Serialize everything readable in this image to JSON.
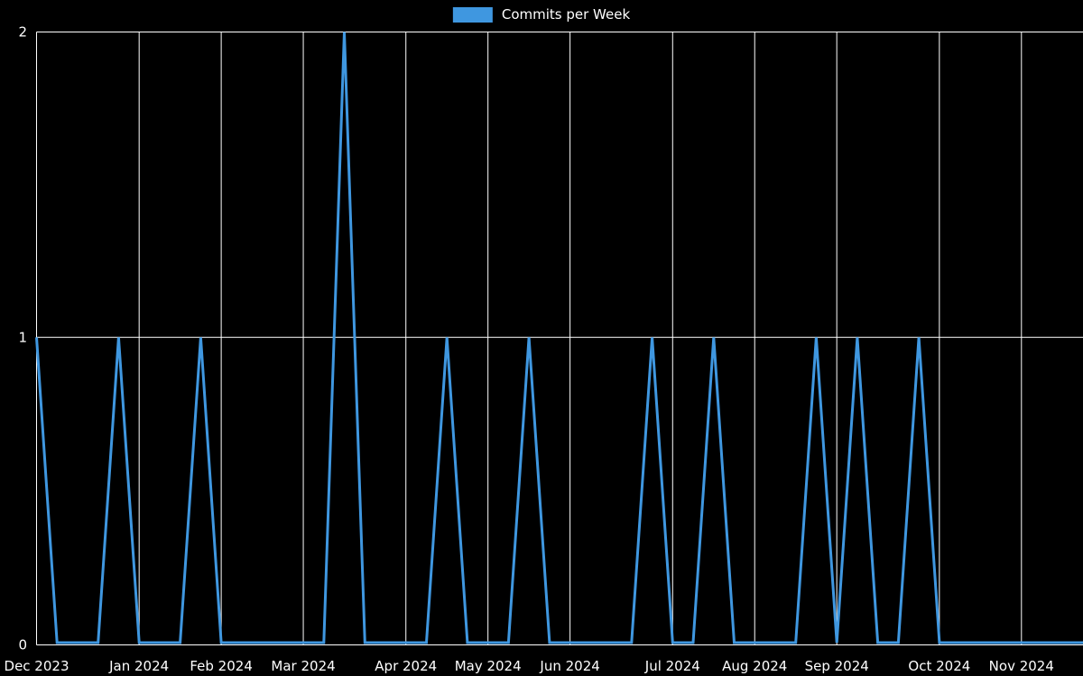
{
  "colors": {
    "background": "#000000",
    "grid": "#ffffff",
    "text": "#ffffff"
  },
  "chart_data": {
    "type": "line",
    "title": "Commits per Week",
    "legend_position": "top-center",
    "grid": true,
    "background": "#000000",
    "x_unit": "weekly points, Dec 2023 through Nov 2024",
    "x_range_weeks": [
      0,
      51
    ],
    "ylim": [
      0,
      2
    ],
    "y_ticks": [
      {
        "value": 0,
        "label": "0"
      },
      {
        "value": 1,
        "label": "1"
      },
      {
        "value": 2,
        "label": "2"
      }
    ],
    "x_ticks": [
      {
        "week": 0,
        "label": "Dec 2023"
      },
      {
        "week": 5,
        "label": "Jan 2024"
      },
      {
        "week": 9,
        "label": "Feb 2024"
      },
      {
        "week": 13,
        "label": "Mar 2024"
      },
      {
        "week": 18,
        "label": "Apr 2024"
      },
      {
        "week": 22,
        "label": "May 2024"
      },
      {
        "week": 26,
        "label": "Jun 2024"
      },
      {
        "week": 31,
        "label": "Jul 2024"
      },
      {
        "week": 35,
        "label": "Aug 2024"
      },
      {
        "week": 39,
        "label": "Sep 2024"
      },
      {
        "week": 44,
        "label": "Oct 2024"
      },
      {
        "week": 48,
        "label": "Nov 2024"
      }
    ],
    "series": [
      {
        "name": "Commits per Week",
        "color": "#3f97e0",
        "values": [
          1,
          0,
          0,
          0,
          1,
          0,
          0,
          0,
          1,
          0,
          0,
          0,
          0,
          0,
          0,
          2,
          0,
          0,
          0,
          0,
          1,
          0,
          0,
          0,
          1,
          0,
          0,
          0,
          0,
          0,
          1,
          0,
          0,
          1,
          0,
          0,
          0,
          0,
          1,
          0,
          1,
          0,
          0,
          1,
          0,
          0,
          0,
          0,
          0,
          0,
          0,
          0
        ]
      }
    ]
  }
}
